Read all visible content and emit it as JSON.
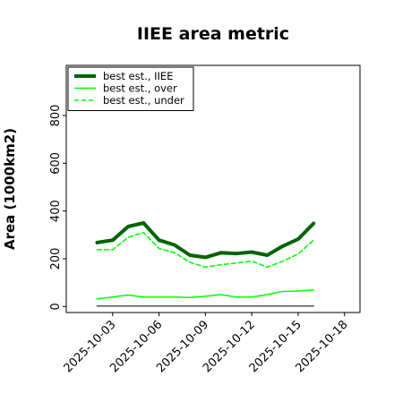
{
  "chart_data": {
    "type": "line",
    "title": "IIEE area metric",
    "xlabel": "",
    "ylabel": "Area (1000km2)",
    "ylim": [
      -25,
      1010
    ],
    "xlim": [
      "2025-09-30",
      "2025-10-19"
    ],
    "grid": false,
    "legend_position": "top-left",
    "x": [
      "2025-10-02",
      "2025-10-03",
      "2025-10-04",
      "2025-10-05",
      "2025-10-06",
      "2025-10-07",
      "2025-10-08",
      "2025-10-09",
      "2025-10-10",
      "2025-10-11",
      "2025-10-12",
      "2025-10-13",
      "2025-10-14",
      "2025-10-15",
      "2025-10-16"
    ],
    "series": [
      {
        "name": "best est., IIEE",
        "color": "#006400",
        "style": "solid",
        "width": 4,
        "values": [
          268,
          278,
          335,
          350,
          278,
          258,
          215,
          206,
          225,
          222,
          228,
          215,
          253,
          282,
          348
        ]
      },
      {
        "name": "best est., over",
        "color": "#00ff00",
        "style": "solid",
        "width": 1.5,
        "values": [
          32,
          40,
          48,
          40,
          40,
          40,
          38,
          43,
          50,
          40,
          40,
          50,
          63,
          65,
          70
        ]
      },
      {
        "name": "best est., under",
        "color": "#00ff00",
        "style": "dashed",
        "width": 1.5,
        "values": [
          238,
          238,
          290,
          310,
          243,
          226,
          185,
          165,
          175,
          182,
          190,
          165,
          190,
          220,
          278
        ]
      },
      {
        "name": "",
        "color": "#555555",
        "style": "solid",
        "width": 1.5,
        "values": [
          2,
          2,
          2,
          2,
          2,
          2,
          2,
          2,
          2,
          2,
          2,
          2,
          2,
          2,
          2
        ]
      }
    ],
    "yticks": [
      0,
      200,
      400,
      600,
      800
    ],
    "ytick_labels": [
      "0",
      "200",
      "400",
      "600",
      "800"
    ],
    "xticks": [
      "2025-10-03",
      "2025-10-06",
      "2025-10-09",
      "2025-10-12",
      "2025-10-15",
      "2025-10-18"
    ],
    "xtick_labels": [
      "2025-10-03",
      "2025-10-06",
      "2025-10-09",
      "2025-10-12",
      "2025-10-15",
      "2025-10-18"
    ]
  }
}
